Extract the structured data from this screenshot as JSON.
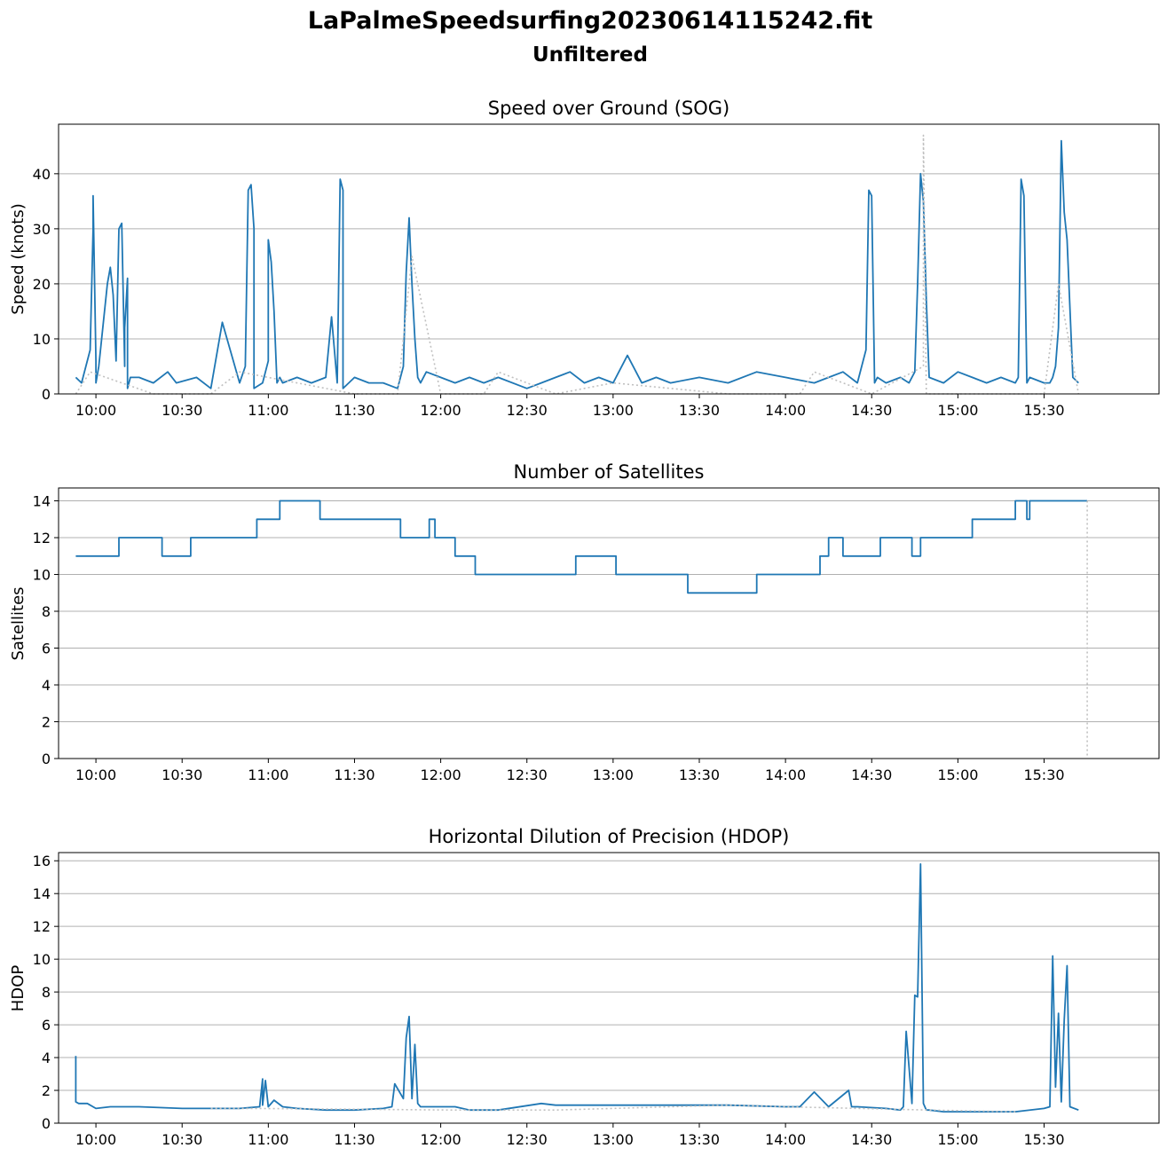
{
  "figure": {
    "title": "LaPalmeSpeedsurfing20230614115242.fit",
    "subtitle": "Unfiltered"
  },
  "colors": {
    "series": "#1f77b4",
    "gap": "#c0c0c0",
    "grid": "#b0b0b0"
  },
  "chart_data": [
    {
      "type": "line",
      "title": "Speed over Ground (SOG)",
      "ylabel": "Speed (knots)",
      "xlabel": "",
      "xlim": [
        "09:47",
        "16:10"
      ],
      "ylim": [
        0,
        49
      ],
      "x_ticks": [
        "10:00",
        "10:30",
        "11:00",
        "11:30",
        "12:00",
        "12:30",
        "13:00",
        "13:30",
        "14:00",
        "14:30",
        "15:00",
        "15:30"
      ],
      "y_ticks": [
        0,
        10,
        20,
        30,
        40
      ],
      "grid": "y",
      "series": [
        {
          "style": "solid",
          "x": [
            "09:53",
            "09:55",
            "09:58",
            "09:59",
            "09:59",
            "10:00",
            "10:00",
            "10:01",
            "10:04",
            "10:05",
            "10:06",
            "10:07",
            "10:08",
            "10:09",
            "10:10",
            "10:10",
            "10:11",
            "10:11",
            "10:12",
            "10:15",
            "10:20",
            "10:25",
            "10:28",
            "10:35",
            "10:40",
            "10:44",
            "10:50",
            "10:52",
            "10:53",
            "10:54",
            "10:55",
            "10:55",
            "10:58",
            "11:00",
            "11:00",
            "11:01",
            "11:02",
            "11:03",
            "11:04",
            "11:05",
            "11:10",
            "11:15",
            "11:20",
            "11:22",
            "11:24",
            "11:25",
            "11:26",
            "11:26",
            "11:28",
            "11:30",
            "11:35",
            "11:40",
            "11:45",
            "11:47",
            "11:48",
            "11:49",
            "11:50",
            "11:51",
            "11:52",
            "11:53",
            "11:55",
            "12:00",
            "12:05",
            "12:10",
            "12:15",
            "12:20",
            "12:30",
            "12:35",
            "12:40",
            "12:45",
            "12:50",
            "12:55",
            "13:00",
            "13:05",
            "13:10",
            "13:15",
            "13:20",
            "13:30",
            "13:40",
            "13:50",
            "14:00",
            "14:10",
            "14:15",
            "14:20",
            "14:25",
            "14:28",
            "14:29",
            "14:30",
            "14:31",
            "14:32",
            "14:35",
            "14:40",
            "14:43",
            "14:45",
            "14:46",
            "14:47",
            "14:48",
            "14:49",
            "14:50",
            "14:55",
            "15:00",
            "15:05",
            "15:10",
            "15:15",
            "15:20",
            "15:21",
            "15:22",
            "15:23",
            "15:24",
            "15:25",
            "15:30",
            "15:32",
            "15:33",
            "15:34",
            "15:35",
            "15:36",
            "15:37",
            "15:38",
            "15:40",
            "15:42"
          ],
          "y": [
            3,
            2,
            8,
            30,
            36,
            6,
            2,
            5,
            20,
            23,
            18,
            6,
            30,
            31,
            5,
            12,
            21,
            1,
            3,
            3,
            2,
            4,
            2,
            3,
            1,
            13,
            2,
            5,
            37,
            38,
            30,
            1,
            2,
            6,
            28,
            24,
            15,
            2,
            3,
            2,
            3,
            2,
            3,
            14,
            2,
            39,
            37,
            1,
            2,
            3,
            2,
            2,
            1,
            5,
            22,
            32,
            20,
            10,
            3,
            2,
            4,
            3,
            2,
            3,
            2,
            3,
            1,
            2,
            3,
            4,
            2,
            3,
            2,
            7,
            2,
            3,
            2,
            3,
            2,
            4,
            3,
            2,
            3,
            4,
            2,
            8,
            37,
            36,
            2,
            3,
            2,
            3,
            2,
            4,
            20,
            40,
            35,
            17,
            3,
            2,
            4,
            3,
            2,
            3,
            2,
            3,
            39,
            36,
            2,
            3,
            2,
            2,
            3,
            5,
            12,
            46,
            33,
            28,
            3,
            2
          ]
        },
        {
          "style": "dotted",
          "x": [
            "09:53",
            "09:58",
            "10:20",
            "10:40",
            "10:50",
            "11:30",
            "11:45",
            "11:50",
            "12:00",
            "12:10",
            "12:15",
            "12:20",
            "12:40",
            "13:00",
            "13:20",
            "13:40",
            "14:05",
            "14:10",
            "14:30",
            "14:48",
            "14:48",
            "14:49",
            "15:00",
            "15:15",
            "15:30",
            "15:35",
            "15:42"
          ],
          "y": [
            0,
            4,
            0,
            0,
            4,
            0,
            0,
            25,
            0,
            0,
            0,
            4,
            0,
            2,
            1,
            0,
            0,
            4,
            0,
            5,
            47,
            0,
            0,
            0,
            0,
            20,
            0
          ]
        }
      ]
    },
    {
      "type": "line",
      "title": "Number of Satellites",
      "ylabel": "Satellites",
      "xlabel": "",
      "xlim": [
        "09:47",
        "16:10"
      ],
      "ylim": [
        0,
        14.7
      ],
      "x_ticks": [
        "10:00",
        "10:30",
        "11:00",
        "11:30",
        "12:00",
        "12:30",
        "13:00",
        "13:30",
        "14:00",
        "14:30",
        "15:00",
        "15:30"
      ],
      "y_ticks": [
        0,
        2,
        4,
        6,
        8,
        10,
        12,
        14
      ],
      "grid": "y",
      "series": [
        {
          "style": "step",
          "x": [
            "09:53",
            "10:08",
            "10:23",
            "10:33",
            "10:43",
            "10:56",
            "11:04",
            "11:18",
            "11:46",
            "11:56",
            "11:58",
            "12:03",
            "12:05",
            "12:12",
            "12:47",
            "13:01",
            "13:26",
            "13:50",
            "14:03",
            "14:12",
            "14:15",
            "14:20",
            "14:28",
            "14:33",
            "14:36",
            "14:40",
            "14:44",
            "14:47",
            "14:50",
            "14:53",
            "15:05",
            "15:15",
            "15:20",
            "15:24",
            "15:25",
            "15:26",
            "15:45"
          ],
          "y": [
            11,
            12,
            11,
            12,
            12,
            13,
            14,
            13,
            12,
            13,
            12,
            12,
            11,
            10,
            11,
            10,
            9,
            10,
            10,
            11,
            12,
            11,
            11,
            12,
            12,
            12,
            11,
            12,
            12,
            12,
            13,
            13,
            14,
            13,
            14,
            14,
            14
          ]
        },
        {
          "style": "dotted",
          "x": [
            "15:45",
            "15:45"
          ],
          "y": [
            14,
            0
          ]
        }
      ]
    },
    {
      "type": "line",
      "title": "Horizontal Dilution of Precision (HDOP)",
      "ylabel": "HDOP",
      "xlabel": "",
      "xlim": [
        "09:47",
        "16:10"
      ],
      "ylim": [
        0,
        16.5
      ],
      "x_ticks": [
        "10:00",
        "10:30",
        "11:00",
        "11:30",
        "12:00",
        "12:30",
        "13:00",
        "13:30",
        "14:00",
        "14:30",
        "15:00",
        "15:30"
      ],
      "y_ticks": [
        0,
        2,
        4,
        6,
        8,
        10,
        12,
        14,
        16
      ],
      "grid": "y",
      "series": [
        {
          "style": "solid",
          "x": [
            "09:53",
            "09:53",
            "09:54",
            "09:57",
            "10:00",
            "10:05",
            "10:15",
            "10:30",
            "10:50",
            "10:57",
            "10:58",
            "10:58",
            "10:59",
            "11:00",
            "11:02",
            "11:05",
            "11:10",
            "11:20",
            "11:30",
            "11:40",
            "11:43",
            "11:44",
            "11:47",
            "11:48",
            "11:49",
            "11:50",
            "11:51",
            "11:52",
            "11:53",
            "12:00",
            "12:05",
            "12:10",
            "12:20",
            "12:35",
            "12:40",
            "13:00",
            "13:20",
            "13:40",
            "14:00",
            "14:05",
            "14:10",
            "14:15",
            "14:22",
            "14:23",
            "14:25",
            "14:35",
            "14:40",
            "14:41",
            "14:42",
            "14:44",
            "14:45",
            "14:46",
            "14:47",
            "14:48",
            "14:49",
            "14:50",
            "14:55",
            "15:00",
            "15:10",
            "15:20",
            "15:30",
            "15:32",
            "15:33",
            "15:34",
            "15:35",
            "15:36",
            "15:37",
            "15:38",
            "15:39",
            "15:42"
          ],
          "y": [
            4.1,
            1.3,
            1.2,
            1.2,
            0.9,
            1.0,
            1.0,
            0.9,
            0.9,
            1.0,
            2.7,
            1.1,
            2.6,
            1.0,
            1.4,
            1.0,
            0.9,
            0.8,
            0.8,
            0.9,
            1.0,
            2.4,
            1.5,
            5.2,
            6.5,
            1.5,
            4.8,
            1.2,
            1.0,
            1.0,
            1.0,
            0.8,
            0.8,
            1.2,
            1.1,
            1.1,
            1.1,
            1.1,
            1.0,
            1.0,
            1.9,
            1.0,
            2.0,
            1.0,
            1.0,
            0.9,
            0.8,
            1.0,
            5.6,
            1.2,
            7.8,
            7.7,
            15.8,
            1.2,
            0.8,
            0.8,
            0.7,
            0.7,
            0.7,
            0.7,
            0.9,
            1.0,
            10.2,
            2.2,
            6.7,
            1.3,
            6.3,
            9.6,
            1.0,
            0.8
          ]
        },
        {
          "style": "dotted",
          "x": [
            "10:40",
            "10:55",
            "12:05",
            "12:40",
            "13:40",
            "14:00",
            "14:50",
            "15:20"
          ],
          "y": [
            0.9,
            0.9,
            0.8,
            0.8,
            1.1,
            1.0,
            0.8,
            0.7
          ]
        }
      ]
    }
  ]
}
